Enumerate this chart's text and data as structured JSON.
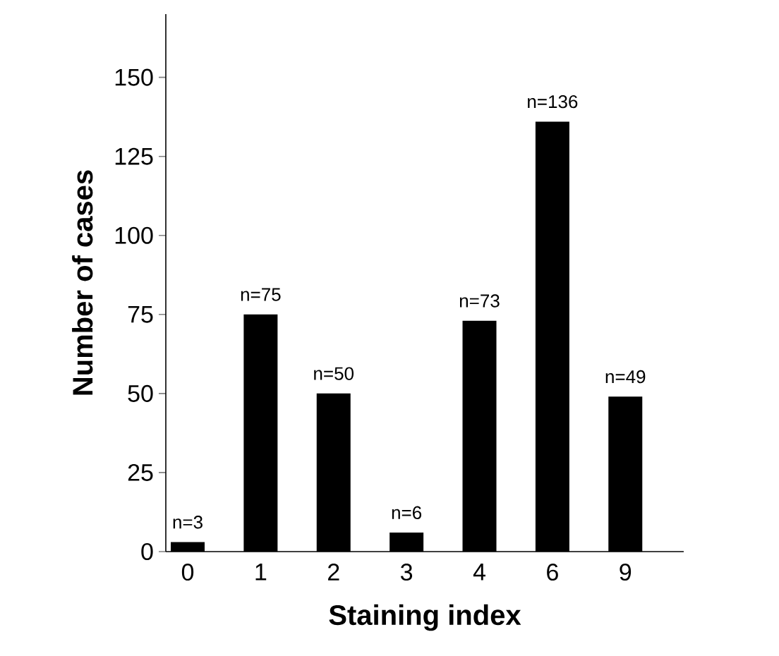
{
  "chart_data": {
    "type": "bar",
    "xlabel": "Staining index",
    "ylabel": "Number of cases",
    "categories": [
      "0",
      "1",
      "2",
      "3",
      "4",
      "6",
      "9"
    ],
    "values": [
      3,
      75,
      50,
      6,
      73,
      136,
      49
    ],
    "value_labels": [
      "n=3",
      "n=75",
      "n=50",
      "n=6",
      "n=73",
      "n=136",
      "n=49"
    ],
    "color": "#000000",
    "ylim": [
      0,
      170
    ],
    "yticks": [
      0,
      25,
      50,
      75,
      100,
      125,
      150
    ]
  }
}
